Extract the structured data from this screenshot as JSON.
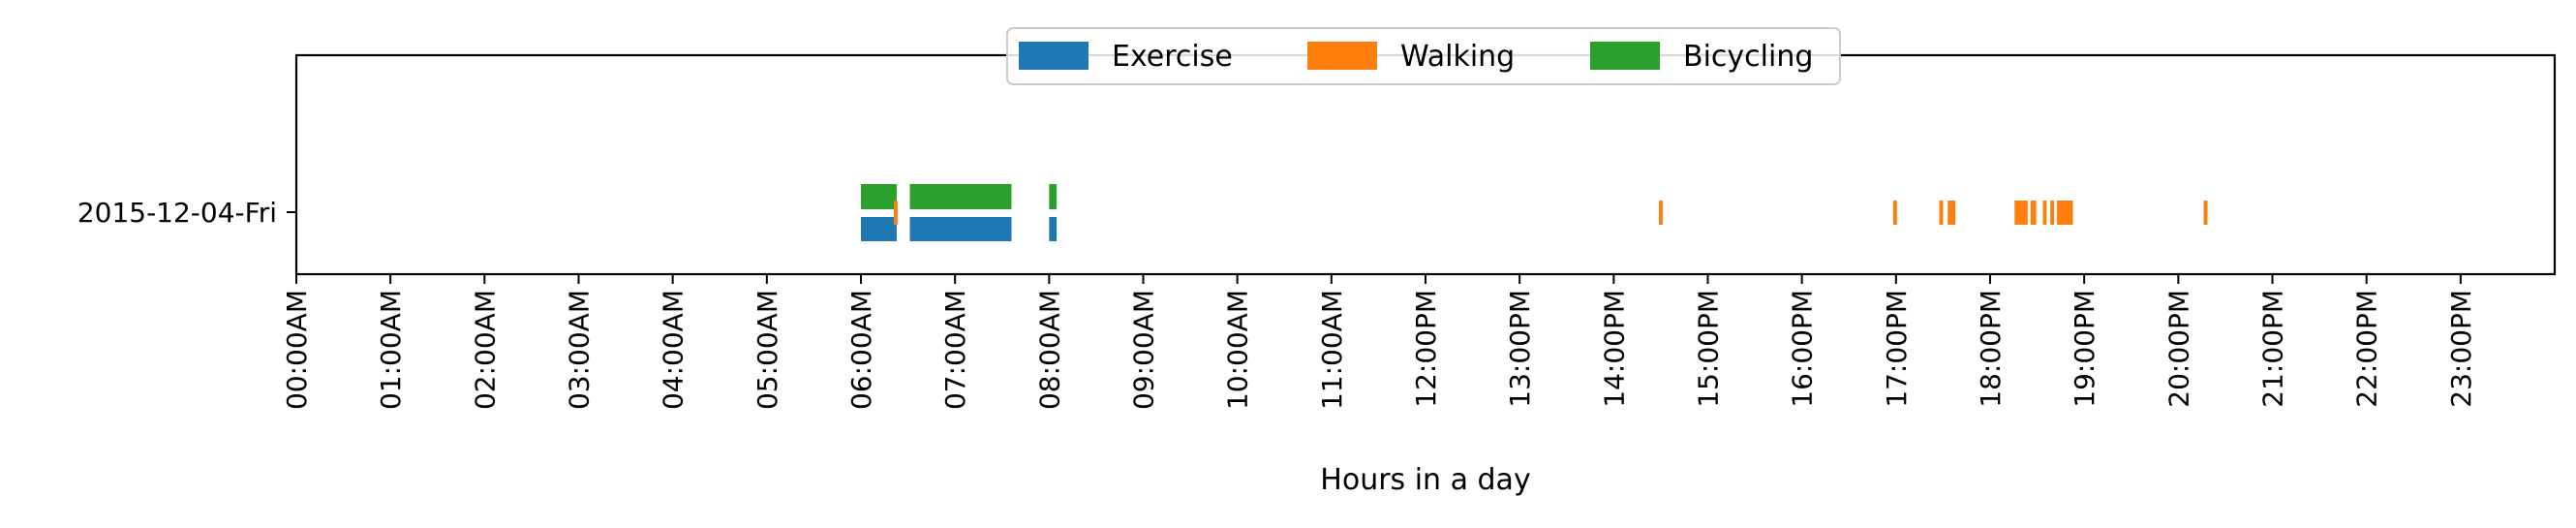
{
  "chart_data": {
    "type": "bar",
    "orientation": "horizontal-timeline",
    "title": "",
    "xlabel": "Hours in a day",
    "ylabel": "",
    "xlim": [
      0,
      24
    ],
    "grid": false,
    "legend_position": "top-center",
    "y_categories": [
      "2015-12-04-Fri"
    ],
    "x_tick_labels": [
      "00:00AM",
      "01:00AM",
      "02:00AM",
      "03:00AM",
      "04:00AM",
      "05:00AM",
      "06:00AM",
      "07:00AM",
      "08:00AM",
      "09:00AM",
      "10:00AM",
      "11:00AM",
      "12:00PM",
      "13:00PM",
      "14:00PM",
      "15:00PM",
      "16:00PM",
      "17:00PM",
      "18:00PM",
      "19:00PM",
      "20:00PM",
      "21:00PM",
      "22:00PM",
      "23:00PM"
    ],
    "series": [
      {
        "name": "Exercise",
        "color": "#1f77b4",
        "intervals": [
          [
            6.0,
            6.38
          ],
          [
            6.52,
            7.6
          ],
          [
            8.0,
            8.08
          ]
        ]
      },
      {
        "name": "Walking",
        "color": "#ff7f0e",
        "intervals": [
          [
            6.35,
            6.39
          ],
          [
            14.48,
            14.52
          ],
          [
            16.97,
            17.01
          ],
          [
            17.46,
            17.5
          ],
          [
            17.55,
            17.63
          ],
          [
            18.26,
            18.4
          ],
          [
            18.43,
            18.49
          ],
          [
            18.56,
            18.6
          ],
          [
            18.64,
            18.68
          ],
          [
            18.71,
            18.88
          ],
          [
            20.27,
            20.31
          ]
        ]
      },
      {
        "name": "Bicycling",
        "color": "#2ca02c",
        "intervals": [
          [
            6.0,
            6.38
          ],
          [
            6.52,
            7.6
          ],
          [
            8.0,
            8.08
          ]
        ]
      }
    ]
  }
}
